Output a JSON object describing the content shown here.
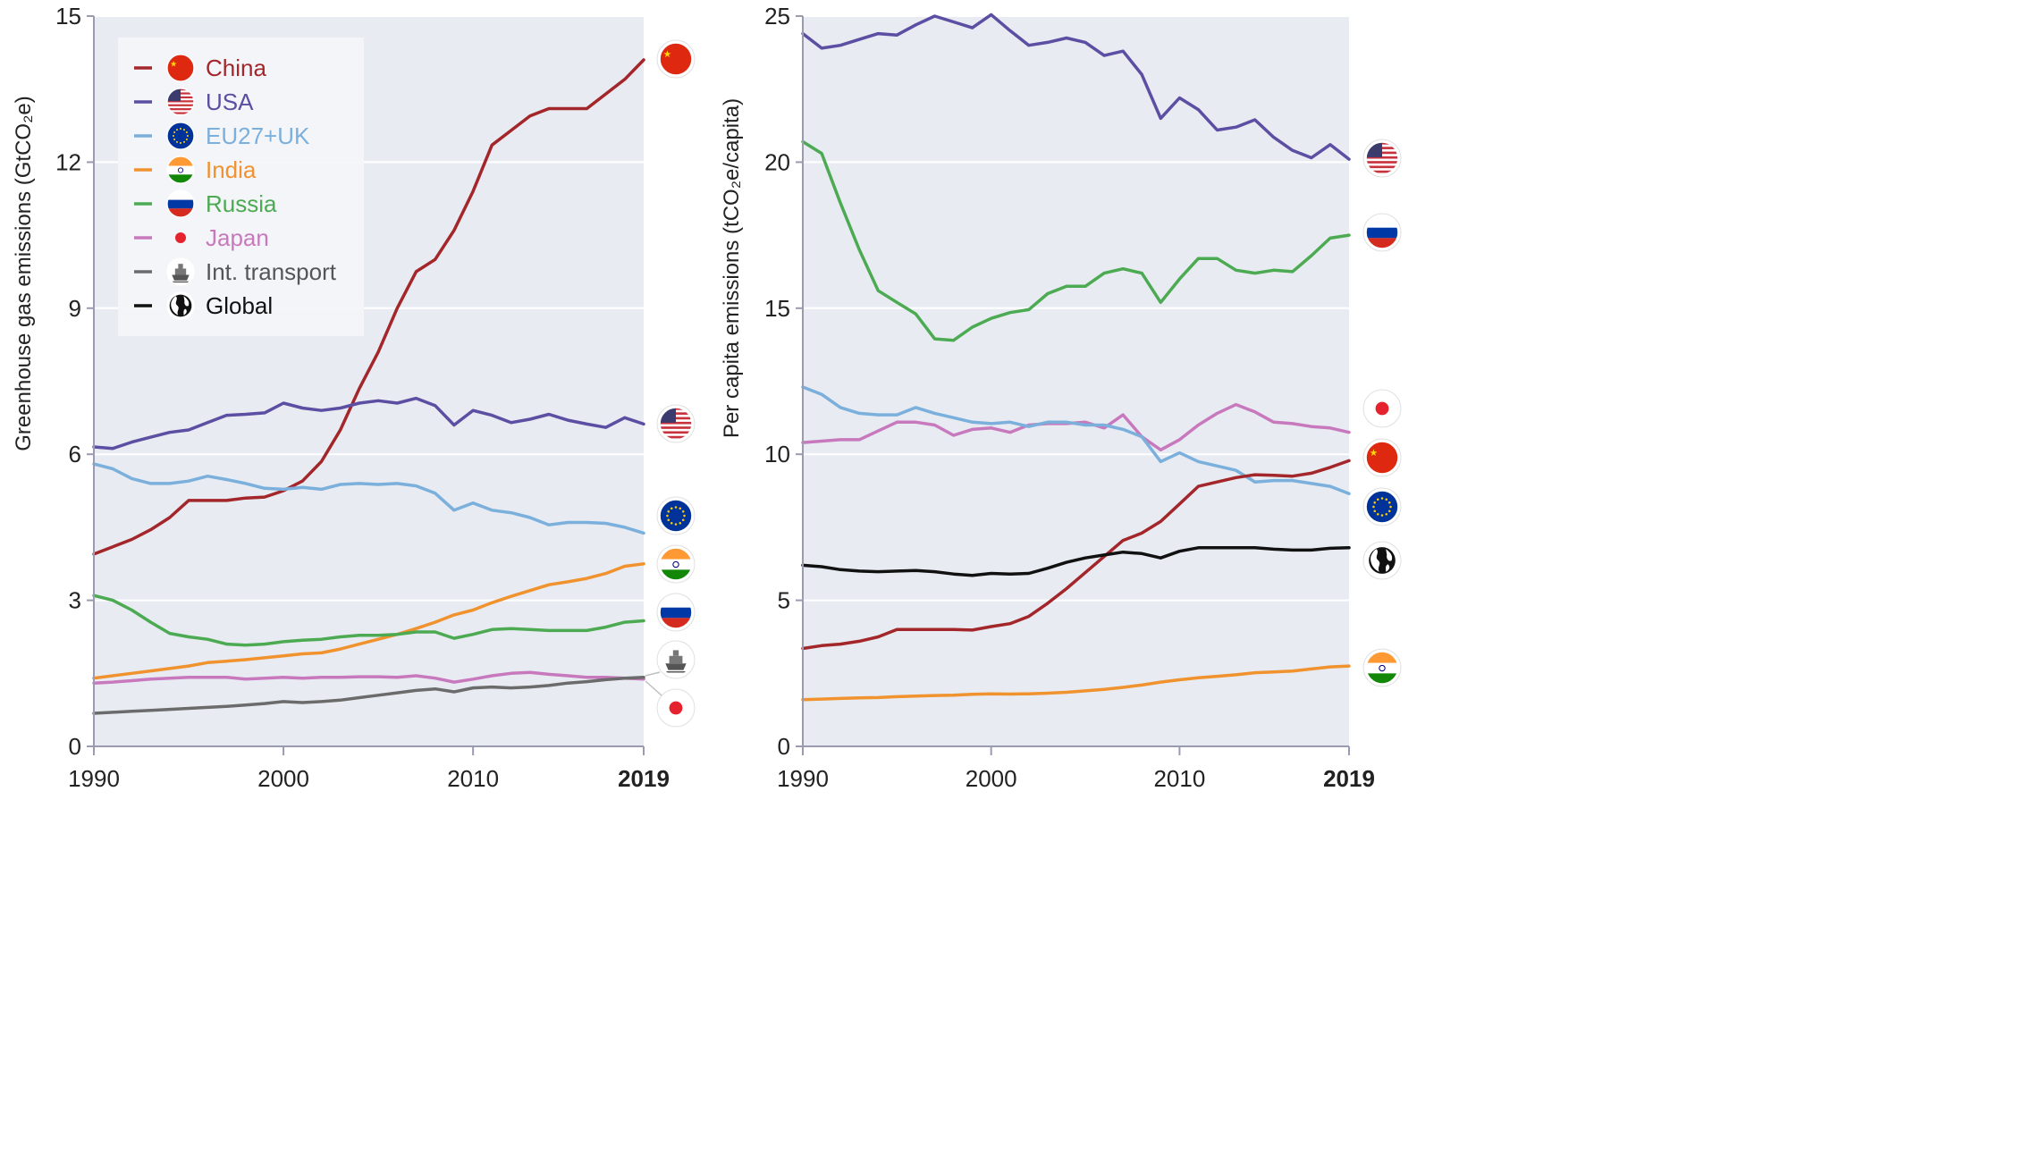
{
  "colors": {
    "China": "#a3262a",
    "USA": "#5b4ea3",
    "EU27+UK": "#7bafdc",
    "India": "#f0922e",
    "Russia": "#4caa52",
    "Japan": "#c879bd",
    "Int. transport": "#6b6b6b",
    "Global": "#111111",
    "plot_bg": "#e8ecf2",
    "axis": "#9a9ab0"
  },
  "legend": {
    "items": [
      {
        "key": "China",
        "label": "China",
        "icon": "china-flag-icon"
      },
      {
        "key": "USA",
        "label": "USA",
        "icon": "usa-flag-icon"
      },
      {
        "key": "EU27+UK",
        "label": "EU27+UK",
        "icon": "eu-flag-icon"
      },
      {
        "key": "India",
        "label": "India",
        "icon": "india-flag-icon"
      },
      {
        "key": "Russia",
        "label": "Russia",
        "icon": "russia-flag-icon"
      },
      {
        "key": "Japan",
        "label": "Japan",
        "icon": "japan-flag-icon"
      },
      {
        "key": "Int. transport",
        "label": "Int. transport",
        "icon": "ship-icon"
      },
      {
        "key": "Global",
        "label": "Global",
        "icon": "globe-icon"
      }
    ],
    "placement": "top-left"
  },
  "chart_data": [
    {
      "type": "line",
      "title": "",
      "xlabel": "",
      "ylabel": "Greenhouse gas emissions (GtCO₂e)",
      "xlim": [
        1990,
        2019
      ],
      "ylim": [
        0,
        15
      ],
      "x_ticks": [
        1990,
        2000,
        2010,
        2019
      ],
      "x_tick_labels": [
        "1990",
        "2000",
        "2010",
        "2019"
      ],
      "y_ticks": [
        0,
        3,
        6,
        9,
        12,
        15
      ],
      "y_tick_labels": [
        "0",
        "3",
        "6",
        "9",
        "12",
        "15"
      ],
      "grid": "horizontal",
      "x": [
        1990,
        1991,
        1992,
        1993,
        1994,
        1995,
        1996,
        1997,
        1998,
        1999,
        2000,
        2001,
        2002,
        2003,
        2004,
        2005,
        2006,
        2007,
        2008,
        2009,
        2010,
        2011,
        2012,
        2013,
        2014,
        2015,
        2016,
        2017,
        2018,
        2019
      ],
      "series": [
        {
          "name": "China",
          "values": [
            3.95,
            4.1,
            4.25,
            4.45,
            4.7,
            5.05,
            5.05,
            5.05,
            5.1,
            5.12,
            5.25,
            5.45,
            5.85,
            6.5,
            7.35,
            8.1,
            9.0,
            9.75,
            10.0,
            10.6,
            11.4,
            12.35,
            12.65,
            12.95,
            13.1,
            13.1,
            13.1,
            13.4,
            13.7,
            14.1
          ]
        },
        {
          "name": "USA",
          "values": [
            6.15,
            6.12,
            6.25,
            6.35,
            6.45,
            6.5,
            6.65,
            6.8,
            6.82,
            6.85,
            7.05,
            6.95,
            6.9,
            6.95,
            7.05,
            7.1,
            7.05,
            7.15,
            7.0,
            6.6,
            6.9,
            6.8,
            6.65,
            6.72,
            6.82,
            6.7,
            6.62,
            6.55,
            6.75,
            6.62
          ]
        },
        {
          "name": "EU27+UK",
          "values": [
            5.8,
            5.7,
            5.5,
            5.4,
            5.4,
            5.45,
            5.55,
            5.48,
            5.4,
            5.3,
            5.28,
            5.32,
            5.28,
            5.38,
            5.4,
            5.38,
            5.4,
            5.35,
            5.2,
            4.85,
            5.0,
            4.85,
            4.8,
            4.7,
            4.55,
            4.6,
            4.6,
            4.58,
            4.5,
            4.38
          ]
        },
        {
          "name": "India",
          "values": [
            1.4,
            1.45,
            1.5,
            1.55,
            1.6,
            1.65,
            1.72,
            1.75,
            1.78,
            1.82,
            1.86,
            1.9,
            1.92,
            2.0,
            2.1,
            2.2,
            2.3,
            2.42,
            2.55,
            2.7,
            2.8,
            2.95,
            3.08,
            3.2,
            3.32,
            3.38,
            3.45,
            3.55,
            3.7,
            3.75
          ]
        },
        {
          "name": "Russia",
          "values": [
            3.1,
            3.0,
            2.8,
            2.55,
            2.32,
            2.25,
            2.2,
            2.1,
            2.08,
            2.1,
            2.15,
            2.18,
            2.2,
            2.25,
            2.28,
            2.28,
            2.3,
            2.35,
            2.35,
            2.22,
            2.3,
            2.4,
            2.42,
            2.4,
            2.38,
            2.38,
            2.38,
            2.45,
            2.55,
            2.58
          ]
        },
        {
          "name": "Japan",
          "values": [
            1.3,
            1.32,
            1.35,
            1.38,
            1.4,
            1.42,
            1.42,
            1.42,
            1.38,
            1.4,
            1.42,
            1.4,
            1.42,
            1.42,
            1.43,
            1.43,
            1.42,
            1.45,
            1.4,
            1.32,
            1.38,
            1.45,
            1.5,
            1.52,
            1.48,
            1.45,
            1.42,
            1.42,
            1.4,
            1.38
          ]
        },
        {
          "name": "Int. transport",
          "values": [
            0.68,
            0.7,
            0.72,
            0.74,
            0.76,
            0.78,
            0.8,
            0.82,
            0.85,
            0.88,
            0.92,
            0.9,
            0.92,
            0.95,
            1.0,
            1.05,
            1.1,
            1.15,
            1.18,
            1.12,
            1.2,
            1.22,
            1.2,
            1.22,
            1.25,
            1.3,
            1.33,
            1.37,
            1.4,
            1.42
          ]
        }
      ]
    },
    {
      "type": "line",
      "title": "",
      "xlabel": "",
      "ylabel": "Per capita emissions (tCO₂e/capita)",
      "xlim": [
        1990,
        2019
      ],
      "ylim": [
        0,
        25
      ],
      "x_ticks": [
        1990,
        2000,
        2010,
        2019
      ],
      "x_tick_labels": [
        "1990",
        "2000",
        "2010",
        "2019"
      ],
      "y_ticks": [
        0,
        5,
        10,
        15,
        20,
        25
      ],
      "y_tick_labels": [
        "0",
        "5",
        "10",
        "15",
        "20",
        "25"
      ],
      "grid": "horizontal",
      "x": [
        1990,
        1991,
        1992,
        1993,
        1994,
        1995,
        1996,
        1997,
        1998,
        1999,
        2000,
        2001,
        2002,
        2003,
        2004,
        2005,
        2006,
        2007,
        2008,
        2009,
        2010,
        2011,
        2012,
        2013,
        2014,
        2015,
        2016,
        2017,
        2018,
        2019
      ],
      "series": [
        {
          "name": "USA",
          "values": [
            24.4,
            23.9,
            24.0,
            24.2,
            24.4,
            24.35,
            24.7,
            25.0,
            24.8,
            24.6,
            25.05,
            24.5,
            24.0,
            24.1,
            24.25,
            24.1,
            23.65,
            23.8,
            23.0,
            21.5,
            22.2,
            21.8,
            21.1,
            21.2,
            21.45,
            20.85,
            20.4,
            20.15,
            20.6,
            20.1
          ]
        },
        {
          "name": "Russia",
          "values": [
            20.7,
            20.3,
            18.6,
            17.0,
            15.6,
            15.2,
            14.8,
            13.95,
            13.9,
            14.35,
            14.65,
            14.85,
            14.95,
            15.5,
            15.75,
            15.75,
            16.2,
            16.35,
            16.2,
            15.2,
            16.0,
            16.7,
            16.7,
            16.3,
            16.2,
            16.3,
            16.25,
            16.8,
            17.4,
            17.5
          ]
        },
        {
          "name": "Japan",
          "values": [
            10.4,
            10.45,
            10.5,
            10.5,
            10.8,
            11.1,
            11.1,
            11.0,
            10.65,
            10.85,
            10.9,
            10.75,
            11.0,
            11.05,
            11.05,
            11.1,
            10.9,
            11.35,
            10.6,
            10.15,
            10.5,
            11.0,
            11.4,
            11.7,
            11.45,
            11.1,
            11.05,
            10.95,
            10.9,
            10.75
          ]
        },
        {
          "name": "EU27+UK",
          "values": [
            12.3,
            12.05,
            11.6,
            11.4,
            11.35,
            11.35,
            11.6,
            11.4,
            11.25,
            11.1,
            11.05,
            11.1,
            10.95,
            11.1,
            11.1,
            11.0,
            11.0,
            10.85,
            10.6,
            9.75,
            10.05,
            9.75,
            9.6,
            9.45,
            9.05,
            9.1,
            9.1,
            9.0,
            8.9,
            8.65
          ]
        },
        {
          "name": "China",
          "values": [
            3.35,
            3.45,
            3.5,
            3.6,
            3.75,
            4.0,
            4.0,
            4.0,
            4.0,
            3.98,
            4.1,
            4.2,
            4.45,
            4.9,
            5.4,
            5.95,
            6.5,
            7.05,
            7.3,
            7.7,
            8.3,
            8.9,
            9.05,
            9.2,
            9.3,
            9.28,
            9.25,
            9.35,
            9.55,
            9.78
          ]
        },
        {
          "name": "Global",
          "values": [
            6.2,
            6.15,
            6.05,
            6.0,
            5.98,
            6.0,
            6.02,
            5.98,
            5.9,
            5.85,
            5.92,
            5.9,
            5.92,
            6.1,
            6.3,
            6.45,
            6.55,
            6.65,
            6.6,
            6.45,
            6.68,
            6.8,
            6.8,
            6.8,
            6.8,
            6.75,
            6.72,
            6.72,
            6.78,
            6.8
          ]
        },
        {
          "name": "India",
          "values": [
            1.6,
            1.62,
            1.64,
            1.66,
            1.67,
            1.7,
            1.72,
            1.74,
            1.75,
            1.78,
            1.8,
            1.79,
            1.8,
            1.82,
            1.85,
            1.9,
            1.95,
            2.02,
            2.1,
            2.2,
            2.28,
            2.35,
            2.4,
            2.45,
            2.52,
            2.55,
            2.58,
            2.65,
            2.72,
            2.75
          ]
        }
      ]
    }
  ]
}
